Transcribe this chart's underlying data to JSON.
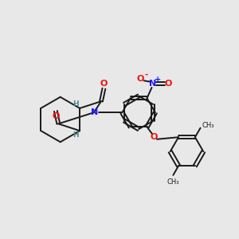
{
  "bg_color": "#e8e8e8",
  "bond_color": "#1a1a1a",
  "N_color": "#1a1aff",
  "O_color": "#ee1111",
  "H_color": "#4a8a8a",
  "figsize": [
    3.0,
    3.0
  ],
  "dpi": 100,
  "xlim": [
    0,
    10
  ],
  "ylim": [
    0,
    10
  ]
}
